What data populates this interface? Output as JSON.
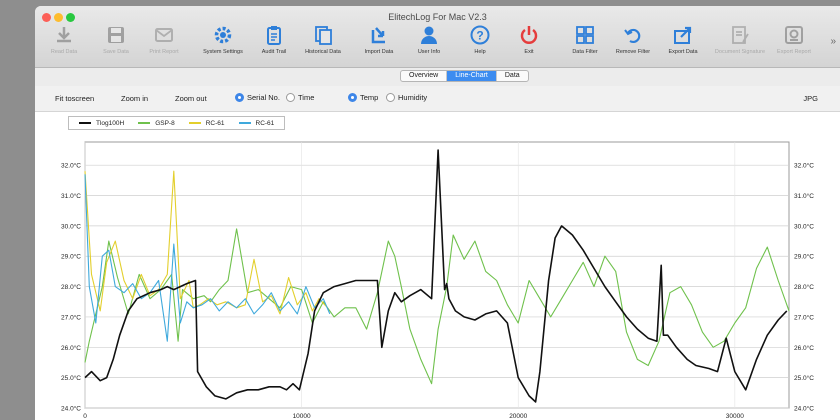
{
  "window": {
    "title": "ElitechLog For Mac V2.3"
  },
  "toolbar": [
    {
      "label": "Read Data",
      "icon": "download-icon",
      "enabled": false,
      "color": "#555555"
    },
    {
      "label": "Save Data",
      "icon": "floppy-disk-icon",
      "enabled": false,
      "color": "#555555"
    },
    {
      "label": "Print Report",
      "icon": "envelope-icon",
      "enabled": false,
      "color": "#777777"
    },
    {
      "label": "System Settings",
      "icon": "gear-icon",
      "enabled": true,
      "color": "#2e7fd9"
    },
    {
      "label": "Audit Trail",
      "icon": "clipboard-icon",
      "enabled": true,
      "color": "#2e7fd9"
    },
    {
      "label": "Historical Data",
      "icon": "documents-icon",
      "enabled": true,
      "color": "#2e7fd9"
    },
    {
      "label": "Import Data",
      "icon": "import-arrow-icon",
      "enabled": true,
      "color": "#2e7fd9"
    },
    {
      "label": "User Info",
      "icon": "user-icon",
      "enabled": true,
      "color": "#2e7fd9"
    },
    {
      "label": "Help",
      "icon": "question-icon",
      "enabled": true,
      "color": "#2e7fd9"
    },
    {
      "label": "Exit",
      "icon": "power-icon",
      "enabled": true,
      "color": "#e53c3c"
    },
    {
      "label": "Data Filter",
      "icon": "grid-icon",
      "enabled": true,
      "color": "#2e7fd9"
    },
    {
      "label": "Remove Filter",
      "icon": "undo-icon",
      "enabled": true,
      "color": "#2e7fd9"
    },
    {
      "label": "Export Data",
      "icon": "export-icon",
      "enabled": true,
      "color": "#2e7fd9"
    },
    {
      "label": "Document Signature",
      "icon": "signature-icon",
      "enabled": false,
      "color": "#777777"
    },
    {
      "label": "Export Report",
      "icon": "report-icon",
      "enabled": false,
      "color": "#555555"
    }
  ],
  "tabs": [
    {
      "label": "Overview",
      "active": false
    },
    {
      "label": "Line-Chart",
      "active": true
    },
    {
      "label": "Data",
      "active": false
    }
  ],
  "controls": {
    "fit": "Fit toscreen",
    "zoom_in": "Zoom in",
    "zoom_out": "Zoom out",
    "xaxis_options": [
      {
        "label": "Serial No.",
        "selected": true
      },
      {
        "label": "Time",
        "selected": false
      }
    ],
    "yaxis_options": [
      {
        "label": "Temp",
        "selected": true
      },
      {
        "label": "Humidity",
        "selected": false
      }
    ],
    "jpg": "JPG"
  },
  "chart_data": {
    "type": "line",
    "xlim": [
      0,
      32500
    ],
    "ylim": [
      24.0,
      32.5
    ],
    "x_ticks": [
      {
        "value": 0,
        "label": "0"
      },
      {
        "value": 10000,
        "label": "10000"
      },
      {
        "value": 20000,
        "label": "20000"
      },
      {
        "value": 30000,
        "label": "30000"
      }
    ],
    "y_ticks": [
      {
        "value": 24,
        "label": "24.0°C"
      },
      {
        "value": 25,
        "label": "25.0°C"
      },
      {
        "value": 26,
        "label": "26.0°C"
      },
      {
        "value": 27,
        "label": "27.0°C"
      },
      {
        "value": 28,
        "label": "28.0°C"
      },
      {
        "value": 29,
        "label": "29.0°C"
      },
      {
        "value": 30,
        "label": "30.0°C"
      },
      {
        "value": 31,
        "label": "31.0°C"
      },
      {
        "value": 32,
        "label": "32.0°C"
      }
    ],
    "grid": true,
    "legend": "top-left",
    "series": [
      {
        "name": "Tlog100H",
        "color": "#111111",
        "x": [
          0,
          300,
          700,
          1000,
          1300,
          1600,
          2000,
          2400,
          3000,
          3500,
          3800,
          4100,
          4400,
          4700,
          5100,
          5200,
          5600,
          6000,
          6500,
          7000,
          7500,
          8000,
          8500,
          9000,
          9300,
          9600,
          9900,
          10300,
          10600,
          11000,
          11500,
          12000,
          12500,
          13000,
          13500,
          13700,
          14000,
          14300,
          14600,
          15000,
          15500,
          16000,
          16300,
          16600,
          16700,
          16800,
          17100,
          17500,
          18000,
          18500,
          19000,
          19500,
          20000,
          20500,
          20800,
          21000,
          21400,
          21700,
          22000,
          22500,
          23000,
          23500,
          24000,
          24500,
          25000,
          25500,
          26000,
          26400,
          26600,
          26700,
          26900,
          27300,
          27800,
          28200,
          28800,
          29200,
          29600,
          30000,
          30500,
          31000,
          31500,
          32000,
          32400
        ],
        "y": [
          25.0,
          25.2,
          24.9,
          25.0,
          25.6,
          26.4,
          27.2,
          27.6,
          27.8,
          27.9,
          28.0,
          27.9,
          28.0,
          28.1,
          28.2,
          25.2,
          24.7,
          24.4,
          24.3,
          24.5,
          24.6,
          24.6,
          24.7,
          24.7,
          24.6,
          24.8,
          24.6,
          25.8,
          27.2,
          27.8,
          28.0,
          28.1,
          28.2,
          28.2,
          28.2,
          26.0,
          27.2,
          27.8,
          27.5,
          27.7,
          27.9,
          27.6,
          32.5,
          27.9,
          28.1,
          27.6,
          27.2,
          27.0,
          26.9,
          27.1,
          27.2,
          26.8,
          25.0,
          24.4,
          24.2,
          25.2,
          28.2,
          29.6,
          30.0,
          29.7,
          29.2,
          28.6,
          28.0,
          27.5,
          27.0,
          26.6,
          26.3,
          26.2,
          28.7,
          26.4,
          26.4,
          26.0,
          25.6,
          25.4,
          25.3,
          25.2,
          26.3,
          25.2,
          24.6,
          25.6,
          26.4,
          26.9,
          27.2
        ]
      },
      {
        "name": "GSP-8",
        "color": "#6fc14c",
        "x": [
          0,
          200,
          500,
          800,
          1100,
          1500,
          2000,
          2500,
          3000,
          3500,
          4000,
          4300,
          4500,
          5000,
          5500,
          5800,
          6200,
          6600,
          7000,
          7500,
          8000,
          8500,
          9000,
          9500,
          10000,
          10500,
          11000,
          11500,
          12000,
          12500,
          13000,
          13500,
          14000,
          14300,
          14600,
          15000,
          15500,
          16000,
          16300,
          16700,
          17000,
          17500,
          18000,
          18500,
          19000,
          19500,
          20000,
          20500,
          21000,
          21500,
          22000,
          22500,
          23000,
          23500,
          24000,
          24500,
          25000,
          25500,
          26000,
          26500,
          27000,
          27500,
          28000,
          28500,
          29000,
          29500,
          30000,
          30500,
          31000,
          31500,
          32000,
          32500
        ],
        "y": [
          25.5,
          26.2,
          27.1,
          28.0,
          29.5,
          28.3,
          27.1,
          28.4,
          27.6,
          27.9,
          28.4,
          26.2,
          27.9,
          27.6,
          27.7,
          27.5,
          27.9,
          28.2,
          29.9,
          27.8,
          27.9,
          27.6,
          27.3,
          28.0,
          27.9,
          26.8,
          27.5,
          27.0,
          27.3,
          27.3,
          26.6,
          27.8,
          29.5,
          29.0,
          28.0,
          26.6,
          25.6,
          24.8,
          26.6,
          28.0,
          29.7,
          28.9,
          29.5,
          28.5,
          28.2,
          27.4,
          26.8,
          28.2,
          27.6,
          27.0,
          27.6,
          28.2,
          28.8,
          28.0,
          29.0,
          28.5,
          26.5,
          25.6,
          25.4,
          26.2,
          27.8,
          28.0,
          27.4,
          26.5,
          26.0,
          26.2,
          26.8,
          27.3,
          28.6,
          29.3,
          28.2,
          27.2
        ]
      },
      {
        "name": "RC-61",
        "color": "#e3cf2c",
        "x": [
          0,
          300,
          700,
          1000,
          1400,
          1800,
          2200,
          2600,
          3000,
          3400,
          3800,
          4100,
          4400,
          4800,
          5000,
          5300,
          5700,
          6100,
          6500,
          7000,
          7400,
          7800,
          8200,
          8600,
          9000,
          9400,
          9800,
          10200,
          10500,
          10800,
          11200
        ],
        "y": [
          31.8,
          28.4,
          27.2,
          28.8,
          29.5,
          28.2,
          27.6,
          28.4,
          27.7,
          27.9,
          28.4,
          31.8,
          27.6,
          28.2,
          27.3,
          27.4,
          27.6,
          27.4,
          27.5,
          27.3,
          27.4,
          28.9,
          27.5,
          27.7,
          27.1,
          28.3,
          27.4,
          27.8,
          27.2,
          27.6,
          27.3
        ]
      },
      {
        "name": "RC-61",
        "color": "#3fa9dc",
        "x": [
          0,
          200,
          500,
          800,
          1100,
          1400,
          1800,
          2200,
          2600,
          3000,
          3400,
          3800,
          4100,
          4400,
          4700,
          5000,
          5400,
          5800,
          6200,
          6600,
          7000,
          7400,
          7800,
          8200,
          8600,
          9000,
          9400,
          9800,
          10200,
          10600,
          11000,
          11300
        ],
        "y": [
          31.7,
          28.0,
          26.8,
          29.0,
          29.2,
          28.0,
          27.8,
          28.1,
          27.6,
          27.8,
          28.2,
          26.2,
          29.4,
          26.8,
          27.5,
          27.3,
          27.4,
          27.6,
          27.2,
          27.5,
          27.3,
          27.6,
          27.1,
          27.4,
          27.8,
          27.2,
          27.5,
          27.1,
          28.0,
          27.3,
          27.6,
          27.1
        ]
      }
    ]
  }
}
